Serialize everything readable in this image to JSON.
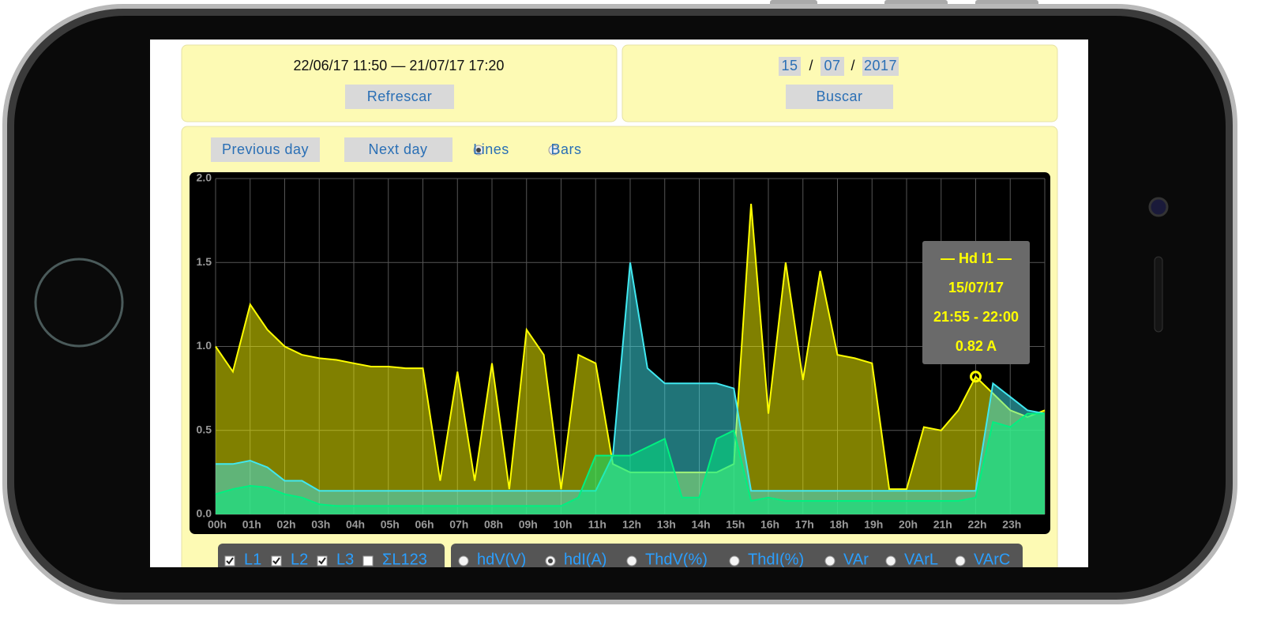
{
  "controls": {
    "range": "22/06/17 11:50 — 21/07/17 17:20",
    "refresh": "Refrescar",
    "date_fields": [
      "15",
      "07",
      "2017"
    ],
    "separators": [
      "/",
      "/"
    ],
    "search": "Buscar",
    "prev": "Previous day",
    "next": "Next day",
    "modes": [
      {
        "label": "Lines",
        "selected": true
      },
      {
        "label": "Bars",
        "selected": false
      }
    ],
    "phases": [
      {
        "label": "L1",
        "checked": true
      },
      {
        "label": "L2",
        "checked": true
      },
      {
        "label": "L3",
        "checked": true
      },
      {
        "label": "ΣL123",
        "checked": false
      }
    ],
    "magnitudes": [
      {
        "label": "hdV(V)",
        "selected": false
      },
      {
        "label": "hdI(A)",
        "selected": true
      },
      {
        "label": "ThdV(%)",
        "selected": false
      },
      {
        "label": "ThdI(%)",
        "selected": false
      },
      {
        "label": "VAr",
        "selected": false
      },
      {
        "label": "VArL",
        "selected": false
      },
      {
        "label": "VArC",
        "selected": false
      }
    ]
  },
  "chart_data": {
    "type": "area",
    "x": [
      0,
      0.5,
      1,
      1.5,
      2,
      2.5,
      3,
      3.5,
      4,
      4.5,
      5,
      5.5,
      6,
      6.5,
      7,
      7.5,
      8,
      8.5,
      9,
      9.5,
      10,
      10.5,
      11,
      11.5,
      12,
      12.5,
      13,
      13.5,
      14,
      14.5,
      15,
      15.5,
      16,
      16.5,
      17,
      17.5,
      18,
      18.5,
      19,
      19.5,
      20,
      20.5,
      21,
      21.5,
      22,
      22.5,
      23,
      23.5,
      24
    ],
    "series": [
      {
        "name": "L1",
        "color": "#ffff00",
        "values": [
          1.0,
          0.85,
          1.25,
          1.1,
          1.0,
          0.95,
          0.93,
          0.92,
          0.9,
          0.88,
          0.88,
          0.87,
          0.87,
          0.2,
          0.85,
          0.2,
          0.9,
          0.15,
          1.1,
          0.95,
          0.15,
          0.95,
          0.9,
          0.3,
          0.25,
          0.25,
          0.25,
          0.25,
          0.25,
          0.25,
          0.3,
          1.85,
          0.6,
          1.5,
          0.8,
          1.45,
          0.95,
          0.93,
          0.9,
          0.15,
          0.15,
          0.52,
          0.5,
          0.62,
          0.82,
          0.72,
          0.62,
          0.58,
          0.62
        ]
      },
      {
        "name": "L2",
        "color": "#40e8f0",
        "values": [
          0.3,
          0.3,
          0.32,
          0.28,
          0.2,
          0.2,
          0.14,
          0.14,
          0.14,
          0.14,
          0.14,
          0.14,
          0.14,
          0.14,
          0.14,
          0.14,
          0.14,
          0.14,
          0.14,
          0.14,
          0.14,
          0.14,
          0.14,
          0.35,
          1.5,
          0.87,
          0.78,
          0.78,
          0.78,
          0.78,
          0.75,
          0.14,
          0.14,
          0.14,
          0.14,
          0.14,
          0.14,
          0.14,
          0.14,
          0.14,
          0.14,
          0.14,
          0.14,
          0.14,
          0.14,
          0.78,
          0.7,
          0.62,
          0.6
        ]
      },
      {
        "name": "L3",
        "color": "#00f080",
        "values": [
          0.12,
          0.15,
          0.17,
          0.16,
          0.12,
          0.1,
          0.06,
          0.05,
          0.05,
          0.05,
          0.05,
          0.05,
          0.05,
          0.05,
          0.05,
          0.05,
          0.05,
          0.05,
          0.05,
          0.05,
          0.05,
          0.1,
          0.35,
          0.35,
          0.35,
          0.4,
          0.45,
          0.1,
          0.1,
          0.45,
          0.5,
          0.08,
          0.1,
          0.08,
          0.08,
          0.08,
          0.08,
          0.08,
          0.08,
          0.08,
          0.08,
          0.08,
          0.08,
          0.08,
          0.1,
          0.55,
          0.52,
          0.6,
          0.6
        ]
      }
    ],
    "xlim": [
      0,
      24
    ],
    "ylim": [
      0,
      2
    ],
    "xticks": [
      {
        "value": 0,
        "label": "00h"
      },
      {
        "value": 1,
        "label": "01h"
      },
      {
        "value": 2,
        "label": "02h"
      },
      {
        "value": 3,
        "label": "03h"
      },
      {
        "value": 4,
        "label": "04h"
      },
      {
        "value": 5,
        "label": "05h"
      },
      {
        "value": 6,
        "label": "06h"
      },
      {
        "value": 7,
        "label": "07h"
      },
      {
        "value": 8,
        "label": "08h"
      },
      {
        "value": 9,
        "label": "09h"
      },
      {
        "value": 10,
        "label": "10h"
      },
      {
        "value": 11,
        "label": "11h"
      },
      {
        "value": 12,
        "label": "12h"
      },
      {
        "value": 13,
        "label": "13h"
      },
      {
        "value": 14,
        "label": "14h"
      },
      {
        "value": 15,
        "label": "15h"
      },
      {
        "value": 16,
        "label": "16h"
      },
      {
        "value": 17,
        "label": "17h"
      },
      {
        "value": 18,
        "label": "18h"
      },
      {
        "value": 19,
        "label": "19h"
      },
      {
        "value": 20,
        "label": "20h"
      },
      {
        "value": 21,
        "label": "21h"
      },
      {
        "value": 22,
        "label": "22h"
      },
      {
        "value": 23,
        "label": "23h"
      }
    ],
    "yticks": [
      {
        "value": 0,
        "label": "0.0"
      },
      0.5,
      {
        "value": 1,
        "label": "1.0"
      },
      1.5,
      {
        "value": 2,
        "label": "2.0"
      }
    ],
    "grid": true,
    "tooltip": {
      "lines": [
        "— Hd I1 —",
        "15/07/17",
        "21:55 - 22:00",
        "0.82 A"
      ],
      "series": 0,
      "index": 44
    }
  }
}
